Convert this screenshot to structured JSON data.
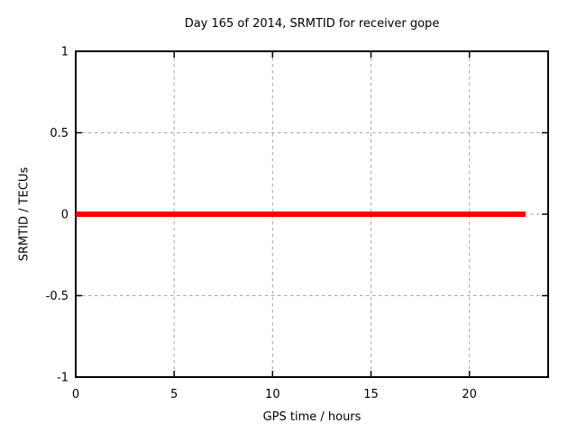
{
  "chart_data": {
    "type": "line",
    "title": "Day 165 of 2014, SRMTID for receiver gope",
    "xlabel": "GPS time / hours",
    "ylabel": "SRMTID / TECUs",
    "xlim": [
      0,
      24
    ],
    "ylim": [
      -1,
      1
    ],
    "xticks": [
      0,
      5,
      10,
      15,
      20
    ],
    "xtick_labels": [
      "0",
      "5",
      "10",
      "15",
      "20"
    ],
    "yticks": [
      -1,
      -0.5,
      0,
      0.5,
      1
    ],
    "ytick_labels": [
      "-1",
      "-0.5",
      "0",
      "0.5",
      "1"
    ],
    "grid": true,
    "grid_style": "dashed",
    "legend": "none",
    "colors": {
      "series": "#ff0000",
      "grid": "#a6a6a6",
      "axis": "#000000",
      "background": "#ffffff",
      "text": "#000000"
    },
    "series": [
      {
        "name": "SRMTID",
        "type": "line",
        "color": "#ff0000",
        "linewidth": 6,
        "x": [
          0,
          22.85
        ],
        "y": [
          0,
          0
        ]
      }
    ]
  }
}
